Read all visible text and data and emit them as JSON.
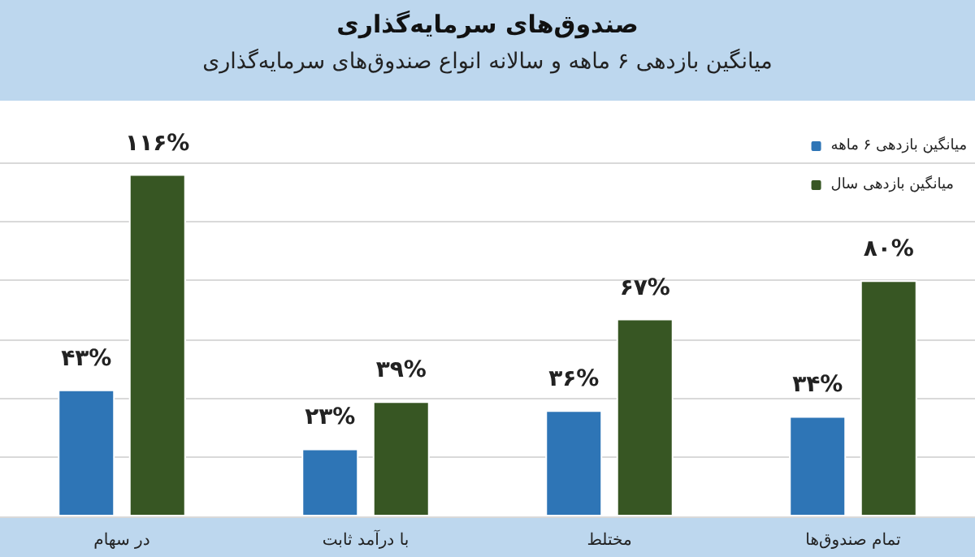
{
  "chart_data": {
    "type": "bar",
    "title": "صندوق‌های سرمایه‌گذاری",
    "subtitle": "میانگین بازدهی ۶ ماهه و سالانه انواع صندوق‌های سرمایه‌گذاری",
    "categories": [
      "در سهام",
      "با درآمد ثابت",
      "مختلط",
      "تمام صندوق‌ها"
    ],
    "series": [
      {
        "name": "میانگین بازدهی ۶ ماهه",
        "color": "#2e75b6",
        "values": [
          43,
          23,
          36,
          34
        ],
        "value_labels": [
          "۴۳%",
          "۲۳%",
          "۳۶%",
          "۳۴%"
        ]
      },
      {
        "name": "میانگین بازدهی سال",
        "color": "#375623",
        "values": [
          116,
          39,
          67,
          80
        ],
        "value_labels": [
          "۱۱۶%",
          "۳۹%",
          "۶۷%",
          "۸۰%"
        ]
      }
    ],
    "ylim": [
      0,
      120
    ],
    "yticks": [
      {
        "value": 0,
        "label": null
      },
      {
        "value": 20,
        "label": null
      },
      {
        "value": 40,
        "label": null
      },
      {
        "value": 60,
        "label": null
      },
      {
        "value": 80,
        "label": null
      },
      {
        "value": 100,
        "label": null
      },
      {
        "value": 120,
        "label": null
      }
    ],
    "grid": "y",
    "legend": "top right",
    "tick_labels": "x"
  }
}
